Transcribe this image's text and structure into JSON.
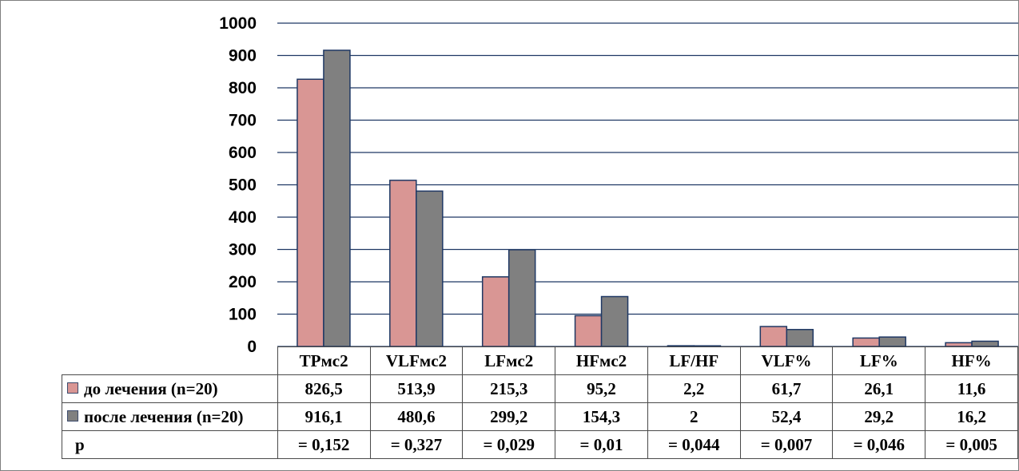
{
  "chart_data": {
    "type": "bar",
    "categories": [
      "TPмс2",
      "VLFмс2",
      "LFмс2",
      "HFмс2",
      "LF/HF",
      "VLF%",
      "LF%",
      "HF%"
    ],
    "series": [
      {
        "name": "до лечения (n=20)",
        "color": "#d99694",
        "values": [
          826.5,
          513.9,
          215.3,
          95.2,
          2.2,
          61.7,
          26.1,
          11.6
        ],
        "labels": [
          "826,5",
          "513,9",
          "215,3",
          "95,2",
          "2,2",
          "61,7",
          "26,1",
          "11,6"
        ]
      },
      {
        "name": "после лечения (n=20)",
        "color": "#808080",
        "values": [
          916.1,
          480.6,
          299.2,
          154.3,
          2,
          52.4,
          29.2,
          16.2
        ],
        "labels": [
          "916,1",
          "480,6",
          "299,2",
          "154,3",
          "2",
          "52,4",
          "29,2",
          "16,2"
        ]
      }
    ],
    "p_row": {
      "label": "p",
      "values": [
        "= 0,152",
        "= 0,327",
        "= 0,029",
        "= 0,01",
        "= 0,044",
        "= 0,007",
        "= 0,046",
        "= 0,005"
      ]
    },
    "yticks": [
      "0",
      "100",
      "200",
      "300",
      "400",
      "500",
      "600",
      "700",
      "800",
      "900",
      "1000"
    ],
    "ylim": [
      0,
      1000
    ],
    "grid": true,
    "legend": "data-table",
    "colors": {
      "gridline": "#1f3864",
      "bar_border": "#1f3864"
    }
  }
}
